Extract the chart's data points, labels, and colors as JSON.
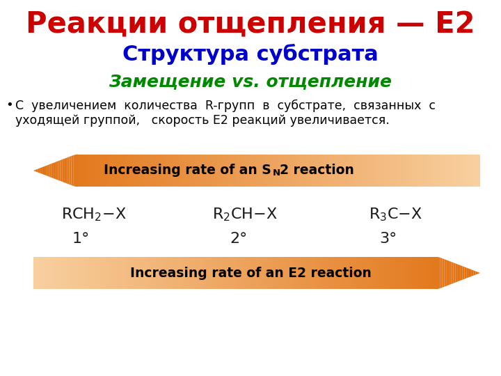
{
  "title": "Реакции отщепления — Е2",
  "subtitle": "Структура субстрата",
  "subtitle2": "Замещение vs. отщепление",
  "bullet_line1": "С  увеличением  количества  R-групп  в  субстрате,  связанных  с",
  "bullet_line2": "уходящей группой,   скорость Е2 реакций увеличивается.",
  "title_color": "#cc0000",
  "subtitle_color": "#0000cc",
  "subtitle2_color": "#008800",
  "bullet_color": "#000000",
  "arrow_dark": "#e07010",
  "arrow_light": "#f8d0a0",
  "background_color": "#ffffff",
  "compound_color": "#1a1a1a",
  "degree1": "1°",
  "degree2": "2°",
  "degree3": "3°"
}
